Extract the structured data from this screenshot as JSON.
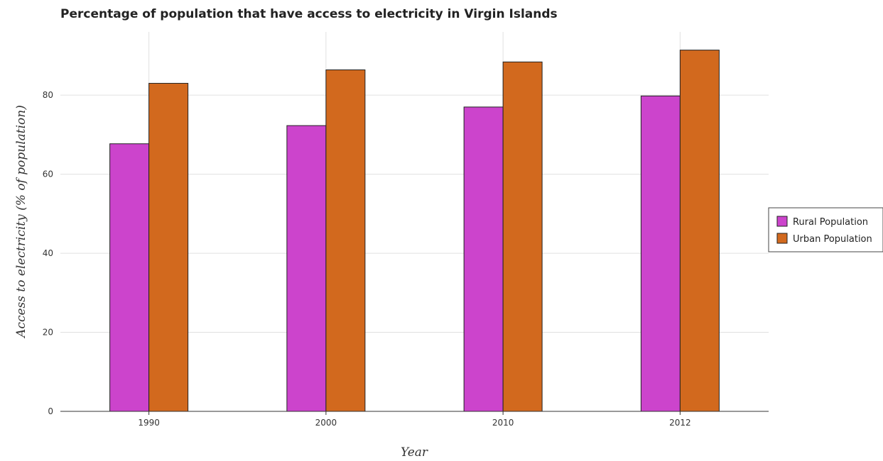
{
  "chart_data": {
    "type": "bar",
    "title": "Percentage of population that have access to electricity in Virgin Islands",
    "xlabel": "Year",
    "ylabel": "Access to electricity (% of population)",
    "categories": [
      "1990",
      "2000",
      "2010",
      "2012"
    ],
    "series": [
      {
        "name": "Rural Population",
        "values": [
          67.7,
          72.3,
          77.0,
          79.8
        ],
        "color": "#cc44cc"
      },
      {
        "name": "Urban Population",
        "values": [
          83.0,
          86.4,
          88.4,
          91.4
        ],
        "color": "#d2691e"
      }
    ],
    "ylim": [
      0,
      96
    ],
    "yticks": [
      0,
      20,
      40,
      60,
      80
    ],
    "grid": true,
    "legend_position": "right"
  }
}
